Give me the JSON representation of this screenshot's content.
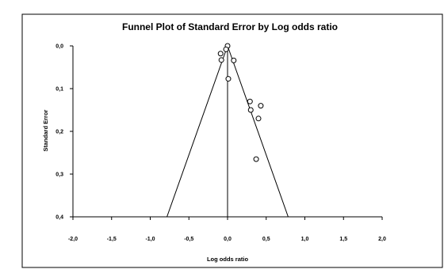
{
  "chart_data": {
    "type": "scatter",
    "title": "Funnel Plot of Standard Error by Log odds ratio",
    "xlabel": "Log odds ratio",
    "ylabel": "Standard Error",
    "xlim": [
      -2.0,
      2.0
    ],
    "ylim": [
      0.0,
      0.4
    ],
    "y_inverted": true,
    "x_ticks": [
      "-2,0",
      "-1,5",
      "-1,0",
      "-0,5",
      "0,0",
      "0,5",
      "1,0",
      "1,5",
      "2,0"
    ],
    "y_ticks": [
      "0,0",
      "0,1",
      "0,2",
      "0,3",
      "0,4"
    ],
    "grid": false,
    "legend": "none",
    "points": [
      {
        "x": 0.0,
        "y": 0.0
      },
      {
        "x": -0.09,
        "y": 0.018
      },
      {
        "x": -0.08,
        "y": 0.033
      },
      {
        "x": -0.02,
        "y": 0.008
      },
      {
        "x": 0.08,
        "y": 0.034
      },
      {
        "x": 0.01,
        "y": 0.077
      },
      {
        "x": 0.29,
        "y": 0.13
      },
      {
        "x": 0.43,
        "y": 0.14
      },
      {
        "x": 0.3,
        "y": 0.15
      },
      {
        "x": 0.4,
        "y": 0.17
      },
      {
        "x": 0.37,
        "y": 0.265
      }
    ],
    "mean_effect": 0.0,
    "funnel_multiplier": 1.96,
    "colors": {
      "line": "#000000",
      "marker_edge": "#000000",
      "marker_fill": "#ffffff",
      "background": "#ffffff"
    }
  }
}
